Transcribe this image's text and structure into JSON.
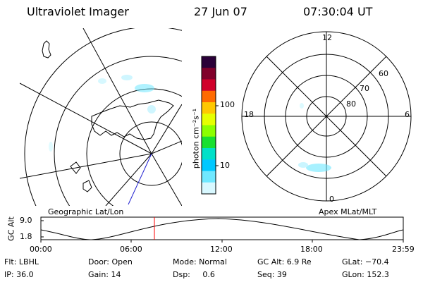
{
  "header": {
    "title": "Ultraviolet Imager",
    "date": "27 Jun 07",
    "time": "07:30:04 UT"
  },
  "colorbar": {
    "unit_label": "photon cm⁻²s⁻¹",
    "ticks": [
      "100",
      "10"
    ],
    "colors": [
      "#2a0038",
      "#80002a",
      "#d0002a",
      "#ff6a00",
      "#ffc800",
      "#e6ff00",
      "#8cff00",
      "#18e030",
      "#00e0c8",
      "#00c8ff",
      "#70e8ff",
      "#d8f8ff"
    ]
  },
  "geographic_panel": {
    "caption": "Geographic Lat/Lon"
  },
  "polar_panel": {
    "caption": "Apex MLat/MLT",
    "mlt_labels": {
      "top": "12",
      "left": "18",
      "right": "6",
      "bottom": "0"
    },
    "lat_labels": [
      "60",
      "70",
      "80"
    ]
  },
  "altitude_plot": {
    "ylabel": "GC Alt",
    "y_ticks": [
      "9.0",
      "1.8"
    ],
    "x_ticks": [
      "00:00",
      "06:00",
      "12:00",
      "18:00",
      "23:59"
    ],
    "marker_color": "#ff0000"
  },
  "footer": {
    "row1": [
      {
        "label": "Flt: LBHL"
      },
      {
        "label": "Door: Open"
      },
      {
        "label": "Mode: Normal"
      },
      {
        "label": "GC Alt: 6.9 Re"
      },
      {
        "label": "GLat: −70.4"
      }
    ],
    "row2": [
      {
        "label": "IP: 36.0"
      },
      {
        "label": "Gain: 14"
      },
      {
        "label": "Dsp:     0.6"
      },
      {
        "label": "Seq: 39"
      },
      {
        "label": "GLon: 152.3"
      }
    ]
  }
}
